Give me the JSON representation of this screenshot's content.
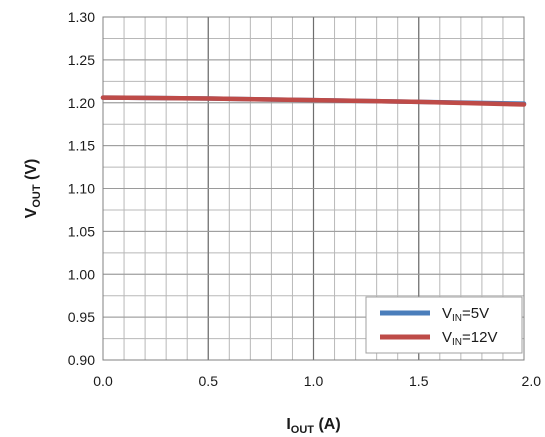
{
  "chart_data": {
    "type": "line",
    "title": "",
    "xlabel_main": "I",
    "xlabel_sub": "OUT",
    "xlabel_unit": " (A)",
    "ylabel_main": "V",
    "ylabel_sub": "OUT",
    "ylabel_unit": " (V)",
    "xlim": [
      0,
      2.0
    ],
    "ylim": [
      0.9,
      1.3
    ],
    "x_ticks": [
      "0.0",
      "0.5",
      "1.0",
      "1.5",
      "2.0"
    ],
    "y_ticks": [
      "0.90",
      "0.95",
      "1.00",
      "1.05",
      "1.10",
      "1.15",
      "1.20",
      "1.25",
      "1.30"
    ],
    "grid": true,
    "legend_position": "bottom-right",
    "series": [
      {
        "name_main": "V",
        "name_sub": "IN",
        "name_suffix": "=5V",
        "color": "#4a7ebb",
        "x": [
          0.0,
          0.5,
          1.0,
          1.5,
          2.0
        ],
        "y": [
          1.206,
          1.205,
          1.203,
          1.201,
          1.199
        ]
      },
      {
        "name_main": "V",
        "name_sub": "IN",
        "name_suffix": "=12V",
        "color": "#be4b48",
        "x": [
          0.0,
          0.5,
          1.0,
          1.5,
          2.0
        ],
        "y": [
          1.206,
          1.205,
          1.203,
          1.201,
          1.198
        ]
      }
    ]
  }
}
